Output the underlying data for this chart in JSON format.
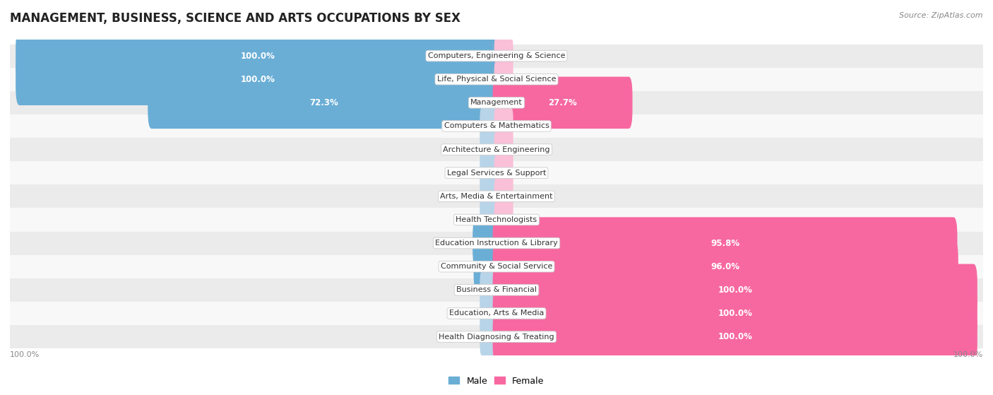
{
  "title": "MANAGEMENT, BUSINESS, SCIENCE AND ARTS OCCUPATIONS BY SEX",
  "source": "Source: ZipAtlas.com",
  "categories": [
    "Computers, Engineering & Science",
    "Life, Physical & Social Science",
    "Management",
    "Computers & Mathematics",
    "Architecture & Engineering",
    "Legal Services & Support",
    "Arts, Media & Entertainment",
    "Health Technologists",
    "Education Instruction & Library",
    "Community & Social Service",
    "Business & Financial",
    "Education, Arts & Media",
    "Health Diagnosing & Treating"
  ],
  "male": [
    100.0,
    100.0,
    72.3,
    0.0,
    0.0,
    0.0,
    0.0,
    0.0,
    4.2,
    4.0,
    0.0,
    0.0,
    0.0
  ],
  "female": [
    0.0,
    0.0,
    27.7,
    0.0,
    0.0,
    0.0,
    0.0,
    0.0,
    95.8,
    96.0,
    100.0,
    100.0,
    100.0
  ],
  "male_color": "#6aaed6",
  "female_color": "#f768a1",
  "male_stub_color": "#b8d4e8",
  "female_stub_color": "#f9c0d8",
  "bg_even_color": "#ebebeb",
  "bg_odd_color": "#f8f8f8",
  "bar_height": 0.62,
  "title_fontsize": 12,
  "label_fontsize": 8.5,
  "category_fontsize": 8,
  "legend_fontsize": 9,
  "source_fontsize": 8
}
